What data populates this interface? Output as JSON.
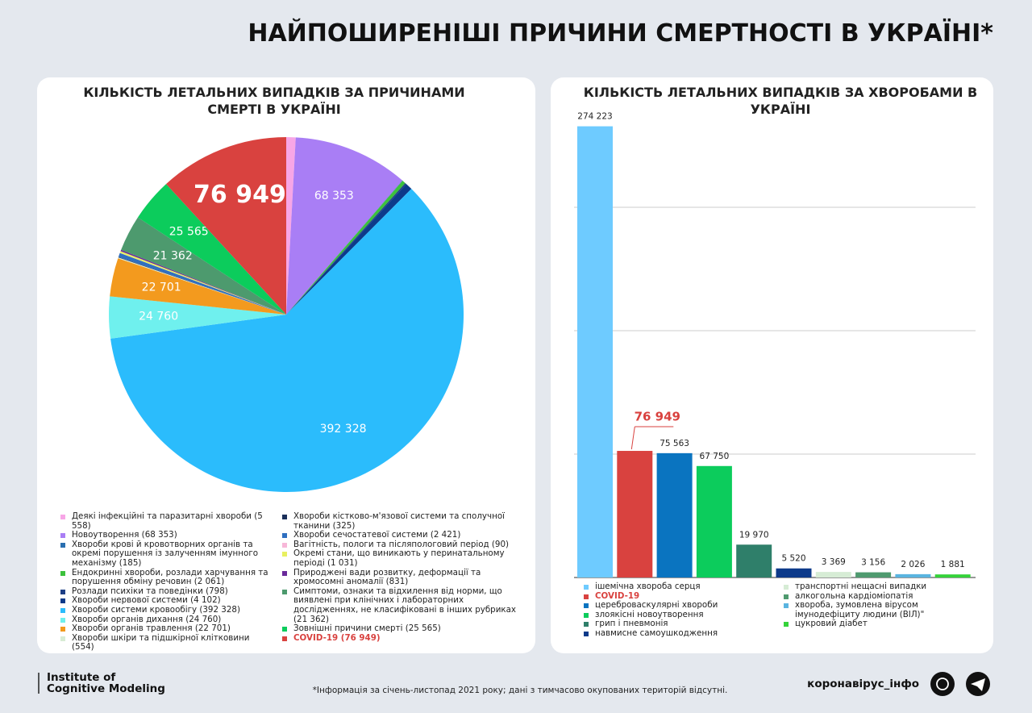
{
  "header": {
    "title": "НАЙПОШИРЕНІШІ ПРИЧИНИ СМЕРТНОСТІ В УКРАЇНІ*"
  },
  "chart_data": [
    {
      "type": "pie",
      "title": "КІЛЬКІСТЬ ЛЕТАЛЬНИХ ВИПАДКІВ ЗА ПРИЧИНАМИ СМЕРТІ В УКРАЇНІ",
      "categories": [
        "Деякі інфекційні та паразитарні хвороби (5 558)",
        "Новоутворення (68 353)",
        "Хвороби крові й кровотворних органів та окремі порушення із залученням імунного механізму (185)",
        "Ендокринні хвороби, розлади харчування та порушення обміну речовин (2 061)",
        "Розлади психіки та поведінки (798)",
        "Хвороби нервової системи (4 102)",
        "Хвороби системи кровообігу (392 328)",
        "Хвороби органів дихання (24 760)",
        "Хвороби органів травлення (22 701)",
        "Хвороби шкіри та підшкірної клітковини (554)",
        "Хвороби кістково-м'язової системи та сполучної тканини (325)",
        "Хвороби сечостатевої системи (2 421)",
        "Вагітність, пологи та післяпологовий період (90)",
        "Окремі стани, що виникають у перинатальному періоді (1 031)",
        "Природжені вади розвитку, деформації та хромосомні аномалії (831)",
        "Симптоми, ознаки та відхилення від норми, що виявлені при клінічних і лабораторних дослідженнях, не класифіковані в інших рубриках (21 362)",
        "Зовнішні причини смерті (25 565)",
        "COVID-19 (76 949)"
      ],
      "values": [
        5558,
        68353,
        185,
        2061,
        798,
        4102,
        392328,
        24760,
        22701,
        554,
        325,
        2421,
        90,
        1031,
        831,
        21362,
        25565,
        76949
      ],
      "value_labels": [
        null,
        "68 353",
        null,
        null,
        null,
        null,
        "392 328",
        "24 760",
        "22 701",
        null,
        null,
        null,
        null,
        null,
        null,
        "21 362",
        "25 565",
        "76 949"
      ],
      "colors": [
        "#f7a6e6",
        "#a97ef5",
        "#2a6fb0",
        "#3cc13c",
        "#1d3f86",
        "#0d3a8a",
        "#2bbcfc",
        "#6ff0ee",
        "#f39a1e",
        "#d8ecd4",
        "#1a2f5a",
        "#2f6fc0",
        "#f7b7d8",
        "#e8f060",
        "#6a2a9a",
        "#4d9a6e",
        "#0ccc5c",
        "#d9423f"
      ],
      "highlight": 17
    },
    {
      "type": "bar",
      "title": "КІЛЬКІСТЬ ЛЕТАЛЬНИХ ВИПАДКІВ ЗА ХВОРОБАМИ В УКРАЇНІ",
      "categories": [
        "ішемічна хвороба серця",
        "COVID-19",
        "цереброваскулярні хвороби",
        "злоякісні новоутворення",
        "грип і пневмонія",
        "навмисне самоушкодження",
        "транспортні нещасні випадки",
        "алкогольна кардіоміопатія",
        "хвороба, зумовлена вірусом імунодефіциту людини (ВІЛ)\"",
        "цукровий діабет"
      ],
      "values": [
        274223,
        76949,
        75563,
        67750,
        19970,
        5520,
        3369,
        3156,
        2026,
        1881
      ],
      "value_labels": [
        "274 223",
        "76 949",
        "75 563",
        "67 750",
        "19 970",
        "5 520",
        "3 369",
        "3 156",
        "2 026",
        "1 881"
      ],
      "colors": [
        "#6ecbff",
        "#d9423f",
        "#0a74c0",
        "#0ccc5c",
        "#2f7f6a",
        "#0d3a8a",
        "#d6ecd5",
        "#4f9a6f",
        "#5ab4e0",
        "#35d33a"
      ],
      "highlight": 1,
      "ylim": [
        0,
        300000
      ],
      "yticks": [
        0,
        75000,
        150000,
        225000
      ],
      "grid": true
    }
  ],
  "footer": {
    "logo": [
      "Institute of",
      "Cognitive Modeling"
    ],
    "note": "*Інформація за січень-листопад 2021 року; дані з тимчасово окупованих територій відсутні.",
    "brand": "коронавірус_інфо"
  }
}
